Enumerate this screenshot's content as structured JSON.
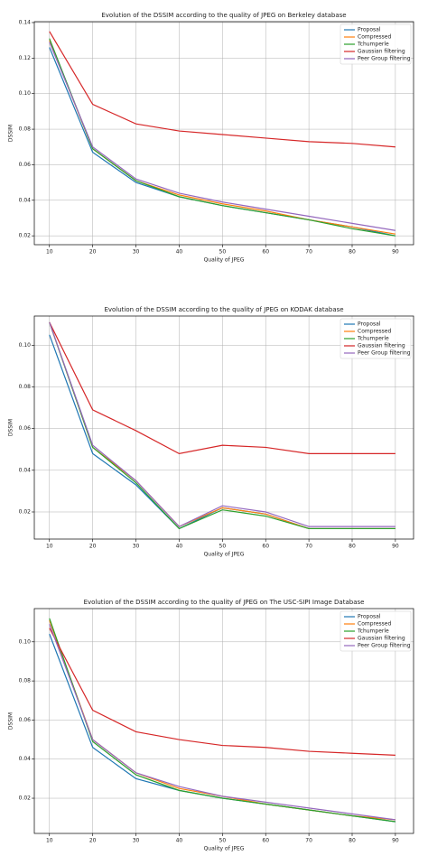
{
  "chart_data": [
    {
      "type": "line",
      "title": "Evolution of the DSSIM according to the quality of JPEG on Berkeley database",
      "x_label": "Quality of JPEG",
      "y_label": "DSSIM",
      "x": [
        10,
        20,
        30,
        40,
        50,
        60,
        70,
        80,
        90
      ],
      "xlim": [
        6.5,
        94.2
      ],
      "xticks": [
        10,
        20,
        30,
        40,
        50,
        60,
        70,
        80,
        90
      ],
      "ylim": [
        0.015,
        0.1405
      ],
      "yticks": [
        0.02,
        0.04,
        0.06,
        0.08,
        {
          "value": 0.1,
          "label": "0.10"
        },
        0.12,
        0.14
      ],
      "grid": true,
      "legend": "upper right",
      "series": [
        {
          "name": "Proposal",
          "color": "#1f77b4",
          "values": [
            0.126,
            0.067,
            0.05,
            0.042,
            0.037,
            0.033,
            0.029,
            0.025,
            0.02
          ]
        },
        {
          "name": "Compressed",
          "color": "#ff7f0e",
          "values": [
            0.13,
            0.069,
            0.051,
            0.043,
            0.038,
            0.034,
            0.029,
            0.025,
            0.021
          ]
        },
        {
          "name": "Tchumperle",
          "color": "#2ca02c",
          "values": [
            0.131,
            0.069,
            0.051,
            0.042,
            0.037,
            0.033,
            0.029,
            0.024,
            0.02
          ]
        },
        {
          "name": "Gaussian filtering",
          "color": "#d62728",
          "values": [
            0.135,
            0.094,
            0.083,
            0.079,
            0.077,
            0.075,
            0.073,
            0.072,
            0.07
          ]
        },
        {
          "name": "Peer Group filtering",
          "color": "#9467bd",
          "values": [
            0.129,
            0.07,
            0.052,
            0.044,
            0.039,
            0.035,
            0.031,
            0.027,
            0.023
          ]
        }
      ]
    },
    {
      "type": "line",
      "title": "Evolution of the DSSIM according to the quality of JPEG on KODAK database",
      "x_label": "Quality of JPEG",
      "y_label": "DSSIM",
      "x": [
        10,
        20,
        30,
        40,
        50,
        60,
        70,
        80,
        90
      ],
      "xlim": [
        6.5,
        94.2
      ],
      "xticks": [
        10,
        20,
        30,
        40,
        50,
        60,
        70,
        80,
        90
      ],
      "ylim": [
        0.007,
        0.114
      ],
      "yticks": [
        0.02,
        0.04,
        0.06,
        0.08,
        {
          "value": 0.1,
          "label": "0.10"
        }
      ],
      "grid": true,
      "legend": "upper right",
      "series": [
        {
          "name": "Proposal",
          "color": "#1f77b4",
          "values": [
            0.105,
            0.048,
            0.033,
            0.012,
            0.022,
            0.019,
            0.012,
            0.012,
            0.012
          ]
        },
        {
          "name": "Compressed",
          "color": "#ff7f0e",
          "values": [
            0.111,
            0.051,
            0.035,
            0.013,
            0.022,
            0.019,
            0.012,
            0.012,
            0.012
          ]
        },
        {
          "name": "Tchumperle",
          "color": "#2ca02c",
          "values": [
            0.111,
            0.051,
            0.034,
            0.012,
            0.021,
            0.018,
            0.012,
            0.012,
            0.012
          ]
        },
        {
          "name": "Gaussian filtering",
          "color": "#d62728",
          "values": [
            0.111,
            0.069,
            0.059,
            0.048,
            0.052,
            0.051,
            0.048,
            0.048,
            0.048
          ]
        },
        {
          "name": "Peer Group filtering",
          "color": "#9467bd",
          "values": [
            0.111,
            0.052,
            0.035,
            0.013,
            0.023,
            0.02,
            0.013,
            0.013,
            0.013
          ]
        }
      ]
    },
    {
      "type": "line",
      "title": "Evolution of the DSSIM according to the quality of JPEG on The USC-SIPI Image Database",
      "x_label": "Quality of JPEG",
      "y_label": "DSSIM",
      "x": [
        10,
        20,
        30,
        40,
        50,
        60,
        70,
        80,
        90
      ],
      "xlim": [
        6.5,
        94.2
      ],
      "xticks": [
        10,
        20,
        30,
        40,
        50,
        60,
        70,
        80,
        90
      ],
      "ylim": [
        0.002,
        0.117
      ],
      "yticks": [
        0.02,
        0.04,
        0.06,
        0.08,
        {
          "value": 0.1,
          "label": "0.10"
        }
      ],
      "grid": true,
      "legend": "upper right",
      "series": [
        {
          "name": "Proposal",
          "color": "#1f77b4",
          "values": [
            0.104,
            0.046,
            0.03,
            0.024,
            0.02,
            0.017,
            0.014,
            0.011,
            0.008
          ]
        },
        {
          "name": "Compressed",
          "color": "#ff7f0e",
          "values": [
            0.111,
            0.05,
            0.033,
            0.025,
            0.021,
            0.017,
            0.014,
            0.011,
            0.009
          ]
        },
        {
          "name": "Tchumperle",
          "color": "#2ca02c",
          "values": [
            0.112,
            0.049,
            0.032,
            0.024,
            0.02,
            0.017,
            0.014,
            0.011,
            0.008
          ]
        },
        {
          "name": "Gaussian filtering",
          "color": "#d62728",
          "values": [
            0.107,
            0.065,
            0.054,
            0.05,
            0.047,
            0.046,
            0.044,
            0.043,
            0.042
          ]
        },
        {
          "name": "Peer Group filtering",
          "color": "#9467bd",
          "values": [
            0.109,
            0.05,
            0.033,
            0.026,
            0.021,
            0.018,
            0.015,
            0.012,
            0.009
          ]
        }
      ]
    }
  ]
}
